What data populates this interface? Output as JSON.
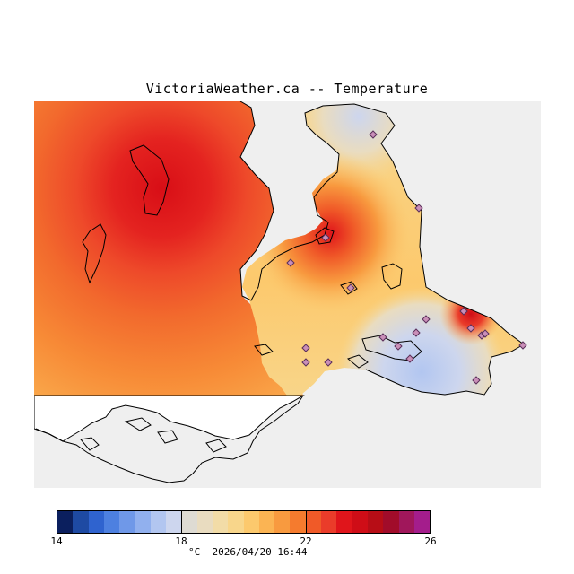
{
  "title": "VictoriaWeather.ca -- Temperature",
  "unit": "°C",
  "timestamp": "2026/04/20 16:44",
  "colorbar": {
    "min": 14,
    "max": 26,
    "tick_labels": [
      "14",
      "18",
      "22",
      "26"
    ],
    "tick_values": [
      14,
      18,
      22,
      26
    ],
    "colors": [
      "#0b1f5e",
      "#1e4aa3",
      "#2f63cf",
      "#4d80e0",
      "#6f98e8",
      "#91b0ee",
      "#b2c6f0",
      "#cdd6ee",
      "#dedbd3",
      "#e9dcc0",
      "#f2dca7",
      "#f8d68b",
      "#fcc96d",
      "#fbb453",
      "#f89a3f",
      "#f57b2e",
      "#f05a28",
      "#ea3c2a",
      "#e0151b",
      "#cf0d17",
      "#b70d16",
      "#a10c2a",
      "#a0175b",
      "#a41d8c"
    ]
  },
  "stations": [
    {
      "name": "station",
      "lon": 416,
      "lat": 150
    },
    {
      "name": "station",
      "lon": 467,
      "lat": 232
    },
    {
      "name": "station",
      "lon": 363,
      "lat": 265
    },
    {
      "name": "station",
      "lon": 324,
      "lat": 293
    },
    {
      "name": "station",
      "lon": 391,
      "lat": 321
    },
    {
      "name": "station",
      "lon": 475,
      "lat": 356
    },
    {
      "name": "station",
      "lon": 517,
      "lat": 347
    },
    {
      "name": "station",
      "lon": 525,
      "lat": 366
    },
    {
      "name": "station",
      "lon": 464,
      "lat": 371
    },
    {
      "name": "station",
      "lon": 427,
      "lat": 376
    },
    {
      "name": "station",
      "lon": 444,
      "lat": 386
    },
    {
      "name": "station",
      "lon": 537,
      "lat": 374
    },
    {
      "name": "station",
      "lon": 541,
      "lat": 372
    },
    {
      "name": "station",
      "lon": 583,
      "lat": 385
    },
    {
      "name": "station",
      "lon": 341,
      "lat": 388
    },
    {
      "name": "station",
      "lon": 341,
      "lat": 404
    },
    {
      "name": "station",
      "lon": 366,
      "lat": 404
    },
    {
      "name": "station",
      "lon": 457,
      "lat": 400
    },
    {
      "name": "station",
      "lon": 531,
      "lat": 424
    }
  ],
  "colors": {
    "background": "#efefef",
    "coastline": "#000000",
    "land_blank": "#ffffff",
    "station_fill": "#c98fb8",
    "station_stroke": "#5a2f5a"
  }
}
